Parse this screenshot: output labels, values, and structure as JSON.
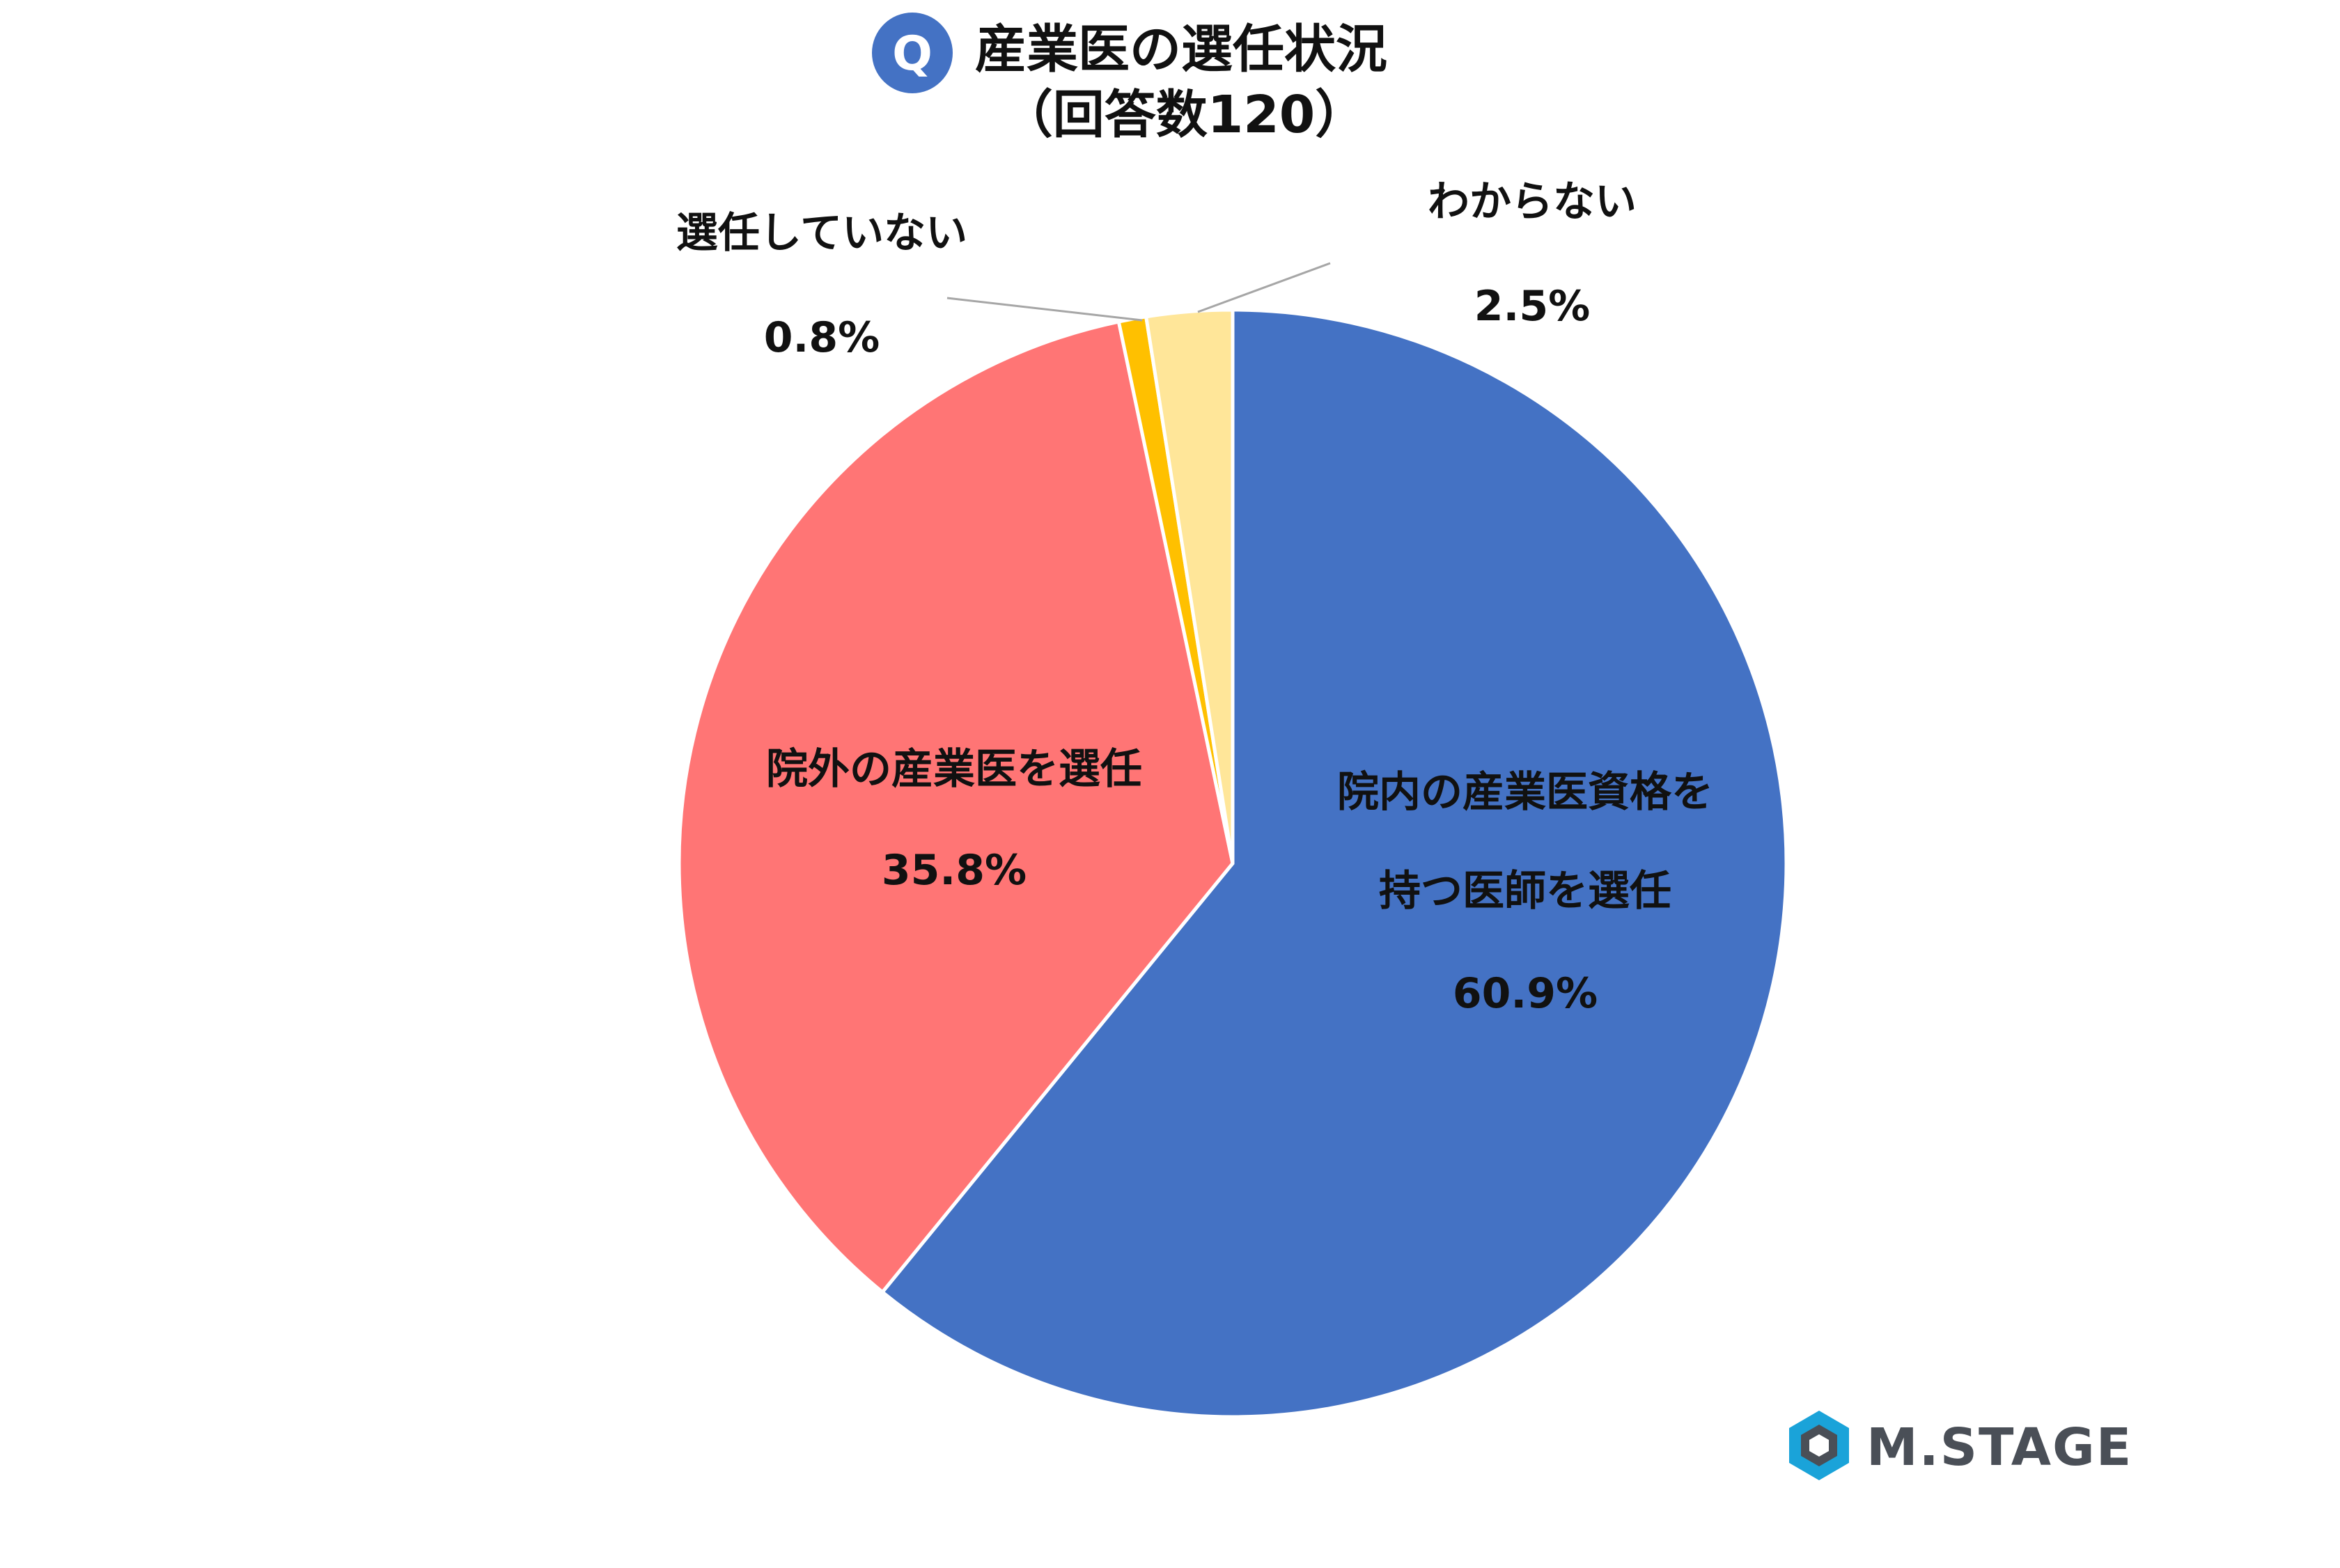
{
  "title": {
    "badge": "Q",
    "line1": "産業医の選任状況",
    "line2": "（回答数120）"
  },
  "chart_data": {
    "type": "pie",
    "title": "産業医の選任状況（回答数120）",
    "start_angle_deg": 0,
    "direction": "clockwise",
    "slices": [
      {
        "label_lines": [
          "院内の産業医資格を",
          "持つ医師を選任"
        ],
        "value": 60.9,
        "value_label": "60.9%",
        "color": "#4472c4"
      },
      {
        "label_lines": [
          "院外の産業医を選任"
        ],
        "value": 35.8,
        "value_label": "35.8%",
        "color": "#ff7575"
      },
      {
        "label_lines": [
          "選任していない"
        ],
        "value": 0.8,
        "value_label": "0.8%",
        "color": "#ffc000"
      },
      {
        "label_lines": [
          "わからない"
        ],
        "value": 2.5,
        "value_label": "2.5%",
        "color": "#ffe699"
      }
    ]
  },
  "logo": {
    "text": "M.STAGE",
    "colors": {
      "outer": "#1aa3d9",
      "inner": "#4a4f57"
    }
  }
}
